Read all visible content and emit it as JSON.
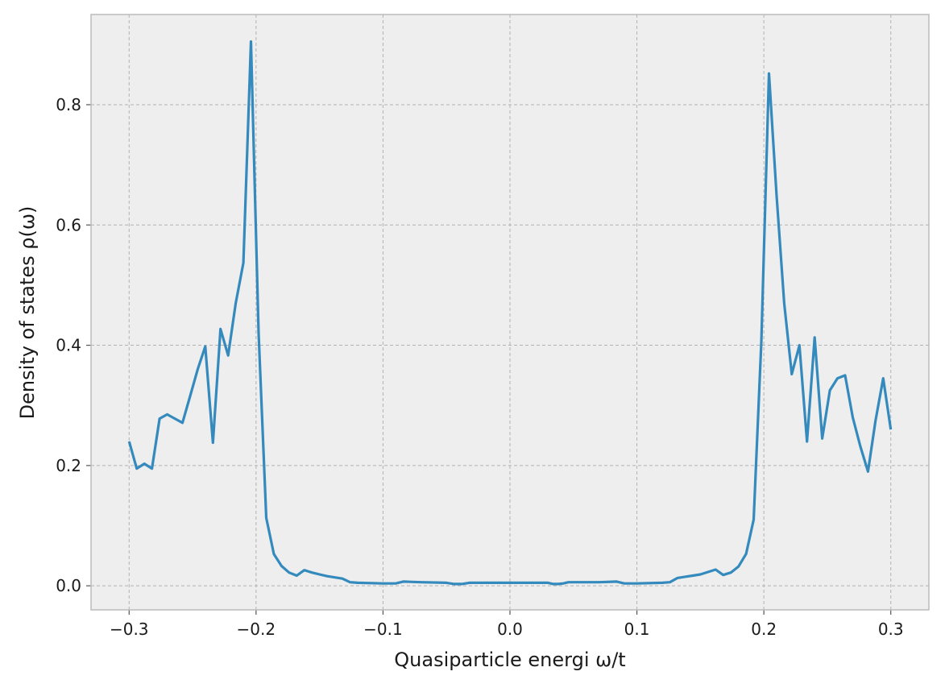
{
  "chart_data": {
    "type": "line",
    "title": "",
    "xlabel": "Quasiparticle energi ω/t",
    "ylabel": "Density of states ρ(ω)",
    "xlim": [
      -0.33,
      0.33
    ],
    "ylim": [
      -0.04,
      0.95
    ],
    "xticks": [
      -0.3,
      -0.2,
      -0.1,
      0.0,
      0.1,
      0.2,
      0.3
    ],
    "xtick_labels": [
      "−0.3",
      "−0.2",
      "−0.1",
      "0.0",
      "0.1",
      "0.2",
      "0.3"
    ],
    "yticks": [
      0.0,
      0.2,
      0.4,
      0.6,
      0.8
    ],
    "ytick_labels": [
      "0.0",
      "0.2",
      "0.4",
      "0.6",
      "0.8"
    ],
    "grid": true,
    "colors": {
      "line": "#348abd",
      "plot_bg": "#eeeeee",
      "grid": "#b2b2b2",
      "frame": "#bcbcbc"
    },
    "series": [
      {
        "x": [
          -0.3,
          -0.294,
          -0.288,
          -0.282,
          -0.276,
          -0.27,
          -0.264,
          -0.258,
          -0.252,
          -0.246,
          -0.24,
          -0.234,
          -0.228,
          -0.222,
          -0.216,
          -0.21,
          -0.204,
          -0.198,
          -0.192,
          -0.186,
          -0.18,
          -0.174,
          -0.168,
          -0.162,
          -0.156,
          -0.15,
          -0.144,
          -0.138,
          -0.132,
          -0.126,
          -0.12,
          -0.1,
          -0.09,
          -0.084,
          -0.07,
          -0.05,
          -0.044,
          -0.038,
          -0.032,
          0.0,
          0.03,
          0.034,
          0.038,
          0.042,
          0.046,
          0.07,
          0.084,
          0.09,
          0.1,
          0.12,
          0.126,
          0.132,
          0.138,
          0.144,
          0.15,
          0.156,
          0.162,
          0.168,
          0.174,
          0.18,
          0.186,
          0.192,
          0.198,
          0.204,
          0.21,
          0.216,
          0.222,
          0.228,
          0.234,
          0.24,
          0.246,
          0.252,
          0.258,
          0.264,
          0.27,
          0.276,
          0.282,
          0.288,
          0.294,
          0.3
        ],
        "values": [
          0.24,
          0.195,
          0.203,
          0.195,
          0.278,
          0.285,
          0.278,
          0.271,
          0.315,
          0.36,
          0.398,
          0.238,
          0.427,
          0.383,
          0.47,
          0.537,
          0.905,
          0.42,
          0.113,
          0.053,
          0.033,
          0.022,
          0.017,
          0.026,
          0.022,
          0.019,
          0.016,
          0.014,
          0.012,
          0.006,
          0.005,
          0.004,
          0.004,
          0.007,
          0.006,
          0.005,
          0.003,
          0.003,
          0.005,
          0.005,
          0.005,
          0.003,
          0.003,
          0.004,
          0.006,
          0.006,
          0.007,
          0.004,
          0.004,
          0.005,
          0.006,
          0.013,
          0.015,
          0.017,
          0.019,
          0.023,
          0.027,
          0.018,
          0.022,
          0.032,
          0.053,
          0.11,
          0.405,
          0.852,
          0.65,
          0.47,
          0.352,
          0.4,
          0.24,
          0.413,
          0.245,
          0.325,
          0.345,
          0.35,
          0.28,
          0.232,
          0.19,
          0.275,
          0.345,
          0.26
        ]
      }
    ]
  }
}
